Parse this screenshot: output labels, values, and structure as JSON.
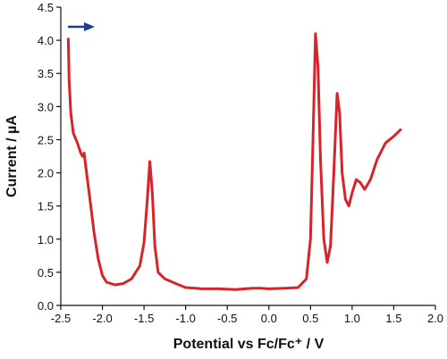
{
  "chart_data": {
    "type": "line",
    "xlabel": "Potential vs Fc/Fc⁺ / V",
    "ylabel": "Current / µA",
    "color": "#d8232a",
    "x": [
      -2.41,
      -2.4,
      -2.38,
      -2.35,
      -2.3,
      -2.26,
      -2.24,
      -2.22,
      -2.2,
      -2.15,
      -2.1,
      -2.05,
      -2.0,
      -1.95,
      -1.85,
      -1.75,
      -1.65,
      -1.55,
      -1.5,
      -1.46,
      -1.43,
      -1.4,
      -1.37,
      -1.33,
      -1.25,
      -1.1,
      -1.0,
      -0.8,
      -0.6,
      -0.4,
      -0.2,
      -0.1,
      0.0,
      0.2,
      0.35,
      0.45,
      0.5,
      0.53,
      0.56,
      0.59,
      0.62,
      0.66,
      0.7,
      0.74,
      0.78,
      0.82,
      0.85,
      0.88,
      0.92,
      0.96,
      1.0,
      1.05,
      1.1,
      1.15,
      1.22,
      1.3,
      1.4,
      1.5,
      1.58
    ],
    "values": [
      4.02,
      3.4,
      2.9,
      2.6,
      2.45,
      2.3,
      2.25,
      2.3,
      2.1,
      1.6,
      1.1,
      0.7,
      0.45,
      0.35,
      0.31,
      0.33,
      0.4,
      0.6,
      0.95,
      1.6,
      2.17,
      1.7,
      0.9,
      0.5,
      0.4,
      0.32,
      0.27,
      0.25,
      0.25,
      0.24,
      0.26,
      0.26,
      0.25,
      0.26,
      0.27,
      0.4,
      1.0,
      2.5,
      4.1,
      3.6,
      2.2,
      1.0,
      0.65,
      0.9,
      2.0,
      3.2,
      2.9,
      2.0,
      1.6,
      1.5,
      1.7,
      1.9,
      1.85,
      1.75,
      1.9,
      2.2,
      2.45,
      2.55,
      2.65
    ],
    "xlim": [
      -2.5,
      2.0
    ],
    "xticks": [
      -2.5,
      {
        "value": -2.0,
        "label": "-2.0"
      },
      -1.5,
      {
        "value": -1.0,
        "label": "-1.0"
      },
      -0.5,
      {
        "value": 0.0,
        "label": "0.0"
      },
      0.5,
      {
        "value": 1.0,
        "label": "1.0"
      },
      1.5,
      {
        "value": 2.0,
        "label": "2.0"
      }
    ],
    "ylim": [
      0.0,
      4.5
    ],
    "yticks": [
      {
        "value": 0.0,
        "label": "0.0"
      },
      0.5,
      {
        "value": 1.0,
        "label": "1.0"
      },
      1.5,
      {
        "value": 2.0,
        "label": "2.0"
      },
      2.5,
      {
        "value": 3.0,
        "label": "3.0"
      },
      3.5,
      {
        "value": 4.0,
        "label": "4.0"
      },
      4.5
    ]
  }
}
